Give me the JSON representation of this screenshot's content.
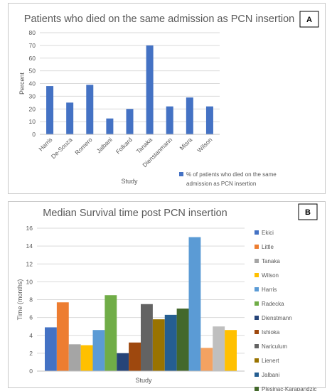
{
  "chart_data": [
    {
      "type": "bar",
      "badge": "A",
      "title": "Patients who died on the same admission as PCN insertion",
      "xlabel": "Study",
      "ylabel": "Percent",
      "ylim": [
        0,
        80
      ],
      "yticks": [
        0,
        10,
        20,
        30,
        40,
        50,
        60,
        70,
        80
      ],
      "categories": [
        "Harris",
        "De-Souza",
        "Romero",
        "Jalbani",
        "Folkard",
        "Tanaka",
        "Dienstanmann",
        "Misra",
        "Wilson"
      ],
      "series": [
        {
          "name": "% of patients who died on the same admission as PCN insertion",
          "values": [
            38,
            25,
            39,
            12.5,
            20,
            70,
            22,
            29,
            22
          ]
        }
      ],
      "legend_lines": [
        "% of patients who died on the same",
        "admission as PCN insertion"
      ],
      "legend_position": "bottom-right",
      "grid": true,
      "colors": {
        "bar": "#4472C4"
      }
    },
    {
      "type": "bar",
      "badge": "B",
      "title": "Median Survival time post PCN insertion",
      "xlabel": "Study",
      "ylabel": "Time (months)",
      "ylim": [
        0,
        16
      ],
      "yticks": [
        0,
        2,
        4,
        6,
        8,
        10,
        12,
        14,
        16
      ],
      "legend_position": "right",
      "grid": true,
      "series": [
        {
          "name": "Ekici",
          "value": 4.9,
          "color": "#4472C4"
        },
        {
          "name": "Little",
          "value": 7.7,
          "color": "#ED7D31"
        },
        {
          "name": "Tanaka",
          "value": 3.0,
          "color": "#A5A5A5"
        },
        {
          "name": "Wilson",
          "value": 2.9,
          "color": "#FFC000"
        },
        {
          "name": "Harris",
          "value": 4.6,
          "color": "#5B9BD5"
        },
        {
          "name": "Radecka",
          "value": 8.5,
          "color": "#70AD47"
        },
        {
          "name": "Dienstmann",
          "value": 2.0,
          "color": "#264478"
        },
        {
          "name": "Ishioka",
          "value": 3.2,
          "color": "#9E480E"
        },
        {
          "name": "Nariculum",
          "value": 7.5,
          "color": "#636363"
        },
        {
          "name": "Lienert",
          "value": 5.8,
          "color": "#997300"
        },
        {
          "name": "Jalbani",
          "value": 6.3,
          "color": "#255E91"
        },
        {
          "name": "Plesinac-Karapandzic",
          "value": 7.0,
          "color": "#43682B"
        },
        {
          "name": "",
          "value": 15.0,
          "color": "#5B9BD5"
        },
        {
          "name": "",
          "value": 2.6,
          "color": "#F4A261"
        },
        {
          "name": "",
          "value": 5.0,
          "color": "#BFBFBF"
        },
        {
          "name": "",
          "value": 4.6,
          "color": "#FFC000"
        }
      ]
    }
  ]
}
